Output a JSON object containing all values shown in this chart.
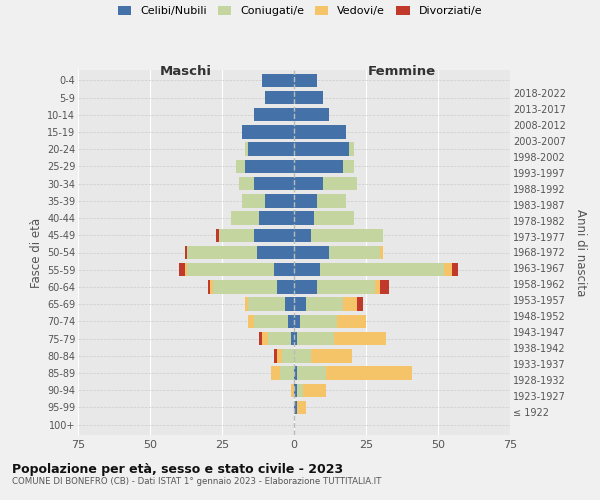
{
  "age_groups": [
    "100+",
    "95-99",
    "90-94",
    "85-89",
    "80-84",
    "75-79",
    "70-74",
    "65-69",
    "60-64",
    "55-59",
    "50-54",
    "45-49",
    "40-44",
    "35-39",
    "30-34",
    "25-29",
    "20-24",
    "15-19",
    "10-14",
    "5-9",
    "0-4"
  ],
  "birth_years": [
    "≤ 1922",
    "1923-1927",
    "1928-1932",
    "1933-1937",
    "1938-1942",
    "1943-1947",
    "1948-1952",
    "1953-1957",
    "1958-1962",
    "1963-1967",
    "1968-1972",
    "1973-1977",
    "1978-1982",
    "1983-1987",
    "1988-1992",
    "1993-1997",
    "1998-2002",
    "2003-2007",
    "2008-2012",
    "2013-2017",
    "2018-2022"
  ],
  "colors": {
    "celibi": "#4472a8",
    "coniugati": "#c5d5a0",
    "vedovi": "#f5c468",
    "divorziati": "#c0392b"
  },
  "males": {
    "celibi": [
      0,
      0,
      0,
      0,
      0,
      1,
      2,
      3,
      6,
      7,
      13,
      14,
      12,
      10,
      14,
      17,
      16,
      18,
      14,
      10,
      11
    ],
    "coniugati": [
      0,
      0,
      0,
      5,
      4,
      8,
      12,
      13,
      22,
      30,
      24,
      12,
      10,
      8,
      5,
      3,
      1,
      0,
      0,
      0,
      0
    ],
    "vedovi": [
      0,
      0,
      1,
      3,
      2,
      2,
      2,
      1,
      1,
      1,
      0,
      0,
      0,
      0,
      0,
      0,
      0,
      0,
      0,
      0,
      0
    ],
    "divorziati": [
      0,
      0,
      0,
      0,
      1,
      1,
      0,
      0,
      1,
      2,
      1,
      1,
      0,
      0,
      0,
      0,
      0,
      0,
      0,
      0,
      0
    ]
  },
  "females": {
    "nubili": [
      0,
      1,
      1,
      1,
      0,
      1,
      2,
      4,
      8,
      9,
      12,
      6,
      7,
      8,
      10,
      17,
      19,
      18,
      12,
      10,
      8
    ],
    "coniugate": [
      0,
      0,
      2,
      10,
      6,
      13,
      13,
      13,
      20,
      43,
      18,
      25,
      14,
      10,
      12,
      4,
      2,
      0,
      0,
      0,
      0
    ],
    "vedove": [
      0,
      3,
      8,
      30,
      14,
      18,
      10,
      5,
      2,
      3,
      1,
      0,
      0,
      0,
      0,
      0,
      0,
      0,
      0,
      0,
      0
    ],
    "divorziate": [
      0,
      0,
      0,
      0,
      0,
      0,
      0,
      2,
      3,
      2,
      0,
      0,
      0,
      0,
      0,
      0,
      0,
      0,
      0,
      0,
      0
    ]
  },
  "xlim": 75,
  "title": "Popolazione per età, sesso e stato civile - 2023",
  "subtitle": "COMUNE DI BONEFRO (CB) - Dati ISTAT 1° gennaio 2023 - Elaborazione TUTTITALIA.IT",
  "maschi_label": "Maschi",
  "femmine_label": "Femmine",
  "fasce_label": "Fasce di età",
  "anni_label": "Anni di nascita",
  "legend": [
    "Celibi/Nubili",
    "Coniugati/e",
    "Vedovi/e",
    "Divorziati/e"
  ],
  "background_color": "#f0f0f0",
  "plot_bg": "#e8e8e8"
}
